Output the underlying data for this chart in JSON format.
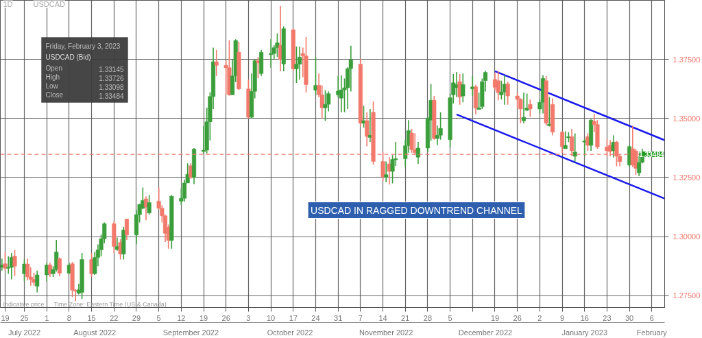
{
  "chart_data": {
    "type": "candlestick",
    "title": "USDCAD",
    "subtitle": "1D",
    "x": [
      "2022-07-18",
      "2022-07-19",
      "2022-07-20",
      "2022-07-21",
      "2022-07-22",
      "2022-07-25",
      "2022-07-26",
      "2022-07-27",
      "2022-07-28",
      "2022-07-29",
      "2022-08-01",
      "2022-08-02",
      "2022-08-03",
      "2022-08-04",
      "2022-08-05",
      "2022-08-08",
      "2022-08-09",
      "2022-08-10",
      "2022-08-11",
      "2022-08-12",
      "2022-08-15",
      "2022-08-16",
      "2022-08-17",
      "2022-08-18",
      "2022-08-19",
      "2022-08-22",
      "2022-08-23",
      "2022-08-24",
      "2022-08-25",
      "2022-08-26",
      "2022-08-29",
      "2022-08-30",
      "2022-08-31",
      "2022-09-01",
      "2022-09-02",
      "2022-09-05",
      "2022-09-06",
      "2022-09-07",
      "2022-09-08",
      "2022-09-09",
      "2022-09-12",
      "2022-09-13",
      "2022-09-14",
      "2022-09-15",
      "2022-09-16",
      "2022-09-19",
      "2022-09-20",
      "2022-09-21",
      "2022-09-22",
      "2022-09-23",
      "2022-09-26",
      "2022-09-27",
      "2022-09-28",
      "2022-09-29",
      "2022-09-30",
      "2022-10-03",
      "2022-10-04",
      "2022-10-05",
      "2022-10-06",
      "2022-10-07",
      "2022-10-10",
      "2022-10-11",
      "2022-10-12",
      "2022-10-13",
      "2022-10-14",
      "2022-10-17",
      "2022-10-18",
      "2022-10-19",
      "2022-10-20",
      "2022-10-21",
      "2022-10-24",
      "2022-10-25",
      "2022-10-26",
      "2022-10-27",
      "2022-10-28",
      "2022-10-31",
      "2022-11-01",
      "2022-11-02",
      "2022-11-03",
      "2022-11-04",
      "2022-11-07",
      "2022-11-08",
      "2022-11-09",
      "2022-11-10",
      "2022-11-11",
      "2022-11-14",
      "2022-11-15",
      "2022-11-16",
      "2022-11-17",
      "2022-11-18",
      "2022-11-21",
      "2022-11-22",
      "2022-11-23",
      "2022-11-24",
      "2022-11-25",
      "2022-11-28",
      "2022-11-29",
      "2022-11-30",
      "2022-12-01",
      "2022-12-02",
      "2022-12-05",
      "2022-12-06",
      "2022-12-07",
      "2022-12-08",
      "2022-12-09",
      "2022-12-12",
      "2022-12-13",
      "2022-12-14",
      "2022-12-15",
      "2022-12-16",
      "2022-12-19",
      "2022-12-20",
      "2022-12-21",
      "2022-12-22",
      "2022-12-23",
      "2022-12-26",
      "2022-12-27",
      "2022-12-28",
      "2022-12-29",
      "2022-12-30",
      "2023-01-02",
      "2023-01-03",
      "2023-01-04",
      "2023-01-05",
      "2023-01-06",
      "2023-01-09",
      "2023-01-10",
      "2023-01-11",
      "2023-01-12",
      "2023-01-13",
      "2023-01-16",
      "2023-01-17",
      "2023-01-18",
      "2023-01-19",
      "2023-01-20",
      "2023-01-23",
      "2023-01-24",
      "2023-01-25",
      "2023-01-26",
      "2023-01-27",
      "2023-01-30",
      "2023-01-31",
      "2023-02-01",
      "2023-02-02",
      "2023-02-03"
    ],
    "ohlc": [
      [
        1.287,
        1.2907,
        1.2856,
        1.288
      ],
      [
        1.2885,
        1.2935,
        1.2856,
        1.2866
      ],
      [
        1.2866,
        1.2917,
        1.2843,
        1.287
      ],
      [
        1.287,
        1.2931,
        1.2819,
        1.2912
      ],
      [
        1.2917,
        1.2944,
        1.2833,
        1.2875
      ],
      [
        1.2843,
        1.2903,
        1.281,
        1.2884
      ],
      [
        1.2884,
        1.2907,
        1.2815,
        1.2829
      ],
      [
        1.2829,
        1.287,
        1.2792,
        1.2819
      ],
      [
        1.2819,
        1.2847,
        1.2792,
        1.2806
      ],
      [
        1.279,
        1.2856,
        1.2764,
        1.2838
      ],
      [
        1.2838,
        1.2889,
        1.281,
        1.288
      ],
      [
        1.288,
        1.2889,
        1.2829,
        1.2843
      ],
      [
        1.2843,
        1.2875,
        1.2829,
        1.2861
      ],
      [
        1.2861,
        1.2986,
        1.2852,
        1.2935
      ],
      [
        1.2907,
        1.2912,
        1.2833,
        1.2845
      ],
      [
        1.2845,
        1.2889,
        1.2843,
        1.288
      ],
      [
        1.2885,
        1.2893,
        1.2745,
        1.2773
      ],
      [
        1.2773,
        1.2778,
        1.2727,
        1.2769
      ],
      [
        1.276,
        1.2801,
        1.2755,
        1.2775
      ],
      [
        1.2764,
        1.2931,
        1.2736,
        1.2903
      ],
      [
        1.2903,
        1.2931,
        1.2829,
        1.2843
      ],
      [
        1.2843,
        1.2935,
        1.2838,
        1.2912
      ],
      [
        1.2912,
        1.2967,
        1.2875,
        1.2944
      ],
      [
        1.2944,
        1.3009,
        1.2917,
        1.2991
      ],
      [
        1.2991,
        1.306,
        1.2972,
        1.3055
      ],
      [
        1.3055,
        1.3065,
        1.2931,
        1.2958
      ],
      [
        1.2945,
        1.2996,
        1.294,
        1.2958
      ],
      [
        1.2975,
        1.299,
        1.2903,
        1.2926
      ],
      [
        1.2926,
        1.3042,
        1.2903,
        1.3028
      ],
      [
        1.3074,
        1.3074,
        1.2986,
        1.3007
      ],
      [
        1.3007,
        1.3111,
        1.2968,
        1.3093
      ],
      [
        1.3093,
        1.3139,
        1.306,
        1.3136
      ],
      [
        1.312,
        1.3208,
        1.3116,
        1.3153
      ],
      [
        1.316,
        1.3171,
        1.3069,
        1.3125
      ],
      [
        1.31,
        1.3176,
        1.3093,
        1.3144
      ],
      [
        1.315,
        1.3208,
        1.3116,
        1.312
      ],
      [
        1.312,
        1.3134,
        1.306,
        1.3088
      ],
      [
        1.3088,
        1.3093,
        1.2977,
        1.3014
      ],
      [
        1.304,
        1.3051,
        1.2949,
        1.2984
      ],
      [
        1.2984,
        1.3176,
        1.2949,
        1.3171
      ],
      [
        1.315,
        1.3204,
        1.3134,
        1.3162
      ],
      [
        1.3162,
        1.3241,
        1.3148,
        1.3227
      ],
      [
        1.3227,
        1.331,
        1.3227,
        1.3264
      ],
      [
        1.33,
        1.331,
        1.3245,
        1.325
      ],
      [
        1.325,
        1.3375,
        1.3222,
        1.337
      ],
      [
        1.336,
        1.3468,
        1.3352,
        1.3366
      ],
      [
        1.3366,
        1.3546,
        1.3352,
        1.3486
      ],
      [
        1.3486,
        1.3611,
        1.3407,
        1.3593
      ],
      [
        1.3593,
        1.38,
        1.354,
        1.374
      ],
      [
        1.374,
        1.379,
        1.368,
        1.3725
      ],
      [
        1.3725,
        1.3745,
        1.36,
        1.3715
      ],
      [
        1.3715,
        1.383,
        1.3597,
        1.36
      ],
      [
        1.36,
        1.375,
        1.36,
        1.368
      ],
      [
        1.368,
        1.3835,
        1.3655,
        1.383
      ],
      [
        1.378,
        1.3825,
        1.362,
        1.3625
      ],
      [
        1.3625,
        1.3665,
        1.35,
        1.3505
      ],
      [
        1.3505,
        1.369,
        1.35,
        1.3615
      ],
      [
        1.3615,
        1.375,
        1.3585,
        1.3745
      ],
      [
        1.3745,
        1.376,
        1.367,
        1.3735
      ],
      [
        1.369,
        1.379,
        1.368,
        1.378
      ],
      [
        1.377,
        1.3835,
        1.3715,
        1.3775
      ],
      [
        1.3775,
        1.381,
        1.375,
        1.38
      ],
      [
        1.38,
        1.386,
        1.376,
        1.382
      ],
      [
        1.381,
        1.3975,
        1.37,
        1.375
      ],
      [
        1.3731,
        1.389,
        1.37,
        1.388
      ],
      [
        1.3875,
        1.388,
        1.37,
        1.371
      ],
      [
        1.371,
        1.3805,
        1.365,
        1.373
      ],
      [
        1.373,
        1.3805,
        1.3665,
        1.376
      ],
      [
        1.3775,
        1.38,
        1.3675,
        1.3765
      ],
      [
        1.3765,
        1.3845,
        1.361,
        1.3643
      ],
      [
        1.362,
        1.376,
        1.36,
        1.364
      ],
      [
        1.364,
        1.369,
        1.359,
        1.36
      ],
      [
        1.36,
        1.364,
        1.35,
        1.3545
      ],
      [
        1.3545,
        1.362,
        1.349,
        1.356
      ],
      [
        1.356,
        1.3615,
        1.353,
        1.3605
      ],
      [
        1.36,
        1.368,
        1.359,
        1.3616
      ],
      [
        1.3586,
        1.3683,
        1.3526,
        1.3621
      ],
      [
        1.3621,
        1.3669,
        1.3526,
        1.363
      ],
      [
        1.363,
        1.3716,
        1.354,
        1.3711
      ],
      [
        1.3711,
        1.3808,
        1.3614,
        1.3748
      ],
      [
        1.373,
        1.3753,
        1.3466,
        1.348
      ],
      [
        1.348,
        1.3554,
        1.3461,
        1.3491
      ],
      [
        1.3491,
        1.3526,
        1.3382,
        1.3424
      ],
      [
        1.342,
        1.354,
        1.3401,
        1.3429
      ],
      [
        1.3526,
        1.3572,
        1.3304,
        1.3318
      ],
      [
        1.3318,
        1.3359,
        1.3234,
        1.3253
      ],
      [
        1.3253,
        1.3318,
        1.323,
        1.3262
      ],
      [
        1.3308,
        1.3336,
        1.322,
        1.3276
      ],
      [
        1.3276,
        1.3345,
        1.3225,
        1.3327
      ],
      [
        1.3325,
        1.3401,
        1.3299,
        1.333
      ],
      [
        1.333,
        1.341,
        1.3294,
        1.3385
      ],
      [
        1.3385,
        1.3493,
        1.3355,
        1.3449
      ],
      [
        1.3438,
        1.3456,
        1.3355,
        1.3368
      ],
      [
        1.3368,
        1.3438,
        1.3345,
        1.3355
      ],
      [
        1.3336,
        1.3401,
        1.3308,
        1.3375
      ],
      [
        1.3375,
        1.3507,
        1.3359,
        1.3498
      ],
      [
        1.3493,
        1.3646,
        1.3406,
        1.3577
      ],
      [
        1.3577,
        1.3595,
        1.341,
        1.3415
      ],
      [
        1.3415,
        1.347,
        1.3387,
        1.3429
      ],
      [
        1.3429,
        1.3526,
        1.341,
        1.3458
      ],
      [
        1.341,
        1.3605,
        1.3378,
        1.3588
      ],
      [
        1.36,
        1.3688,
        1.3563,
        1.3651
      ],
      [
        1.363,
        1.3697,
        1.3591,
        1.3644
      ],
      [
        1.3656,
        1.3688,
        1.3558,
        1.3591
      ],
      [
        1.3595,
        1.369,
        1.3568,
        1.3644
      ],
      [
        1.3625,
        1.3679,
        1.3595,
        1.3634
      ],
      [
        1.3634,
        1.3642,
        1.3517,
        1.3544
      ],
      [
        1.3538,
        1.3609,
        1.3538,
        1.3545
      ],
      [
        1.355,
        1.3669,
        1.354,
        1.3656
      ],
      [
        1.366,
        1.3702,
        1.3614,
        1.3695
      ],
      [
        1.3665,
        1.3693,
        1.3619,
        1.3632
      ],
      [
        1.366,
        1.3702,
        1.3577,
        1.3609
      ],
      [
        1.36,
        1.366,
        1.3581,
        1.3612
      ],
      [
        1.3612,
        1.3683,
        1.3558,
        1.3646
      ],
      [
        1.3646,
        1.3656,
        1.3558,
        1.3595
      ],
      [
        1.3595,
        1.3609,
        1.3544,
        1.3581
      ],
      [
        1.3581,
        1.3586,
        1.348,
        1.354
      ],
      [
        1.349,
        1.3609,
        1.348,
        1.3505
      ],
      [
        1.3535,
        1.3605,
        1.3531,
        1.3544
      ],
      [
        1.356,
        1.3581,
        1.3507,
        1.354
      ],
      [
        1.354,
        1.3581,
        1.3521,
        1.3568
      ],
      [
        1.3568,
        1.3683,
        1.3521,
        1.3669
      ],
      [
        1.366,
        1.3679,
        1.347,
        1.348
      ],
      [
        1.347,
        1.359,
        1.3466,
        1.3476
      ],
      [
        1.356,
        1.3585,
        1.3428,
        1.3442
      ],
      [
        1.3442,
        1.3446,
        1.3354,
        1.3381
      ],
      [
        1.3372,
        1.3446,
        1.3372,
        1.3386
      ],
      [
        1.3418,
        1.3442,
        1.34,
        1.3423
      ],
      [
        1.3423,
        1.3456,
        1.334,
        1.3363
      ],
      [
        1.334,
        1.3437,
        1.3317,
        1.3358
      ],
      [
        1.34,
        1.3414,
        1.334,
        1.3405
      ],
      [
        1.3423,
        1.3437,
        1.3363,
        1.3386
      ],
      [
        1.3386,
        1.3497,
        1.3363,
        1.3493
      ],
      [
        1.3488,
        1.352,
        1.3442,
        1.3474
      ],
      [
        1.3474,
        1.3493,
        1.3372,
        1.338
      ],
      [
        1.338,
        1.3414,
        1.334,
        1.3363
      ],
      [
        1.3386,
        1.3409,
        1.334,
        1.336
      ],
      [
        1.3363,
        1.3428,
        1.3335,
        1.34
      ],
      [
        1.34,
        1.3405,
        1.3298,
        1.334
      ],
      [
        1.334,
        1.3349,
        1.3298,
        1.3317
      ],
      [
        1.3303,
        1.3386,
        1.3294,
        1.3381
      ],
      [
        1.3372,
        1.347,
        1.3294,
        1.3303
      ],
      [
        1.3363,
        1.3372,
        1.3261,
        1.3289
      ],
      [
        1.327,
        1.334,
        1.3256,
        1.3314
      ],
      [
        1.33145,
        1.33726,
        1.33098,
        1.33484
      ]
    ],
    "colors": [
      "#3a9e3a",
      "#f2796b",
      "#3a9e3a",
      "#3a9e3a",
      "#f2796b",
      "#3a9e3a",
      "#f2796b",
      "#f2796b",
      "#f2796b",
      "#3a9e3a",
      "#3a9e3a",
      "#f2796b",
      "#3a9e3a",
      "#3a9e3a",
      "#f2796b",
      "#3a9e3a",
      "#f2796b",
      "#f2796b",
      "#3a9e3a",
      "#3a9e3a",
      "#f2796b",
      "#3a9e3a",
      "#3a9e3a",
      "#3a9e3a",
      "#3a9e3a",
      "#f2796b",
      "#3a9e3a",
      "#f2796b",
      "#3a9e3a",
      "#f2796b",
      "#3a9e3a",
      "#3a9e3a",
      "#3a9e3a",
      "#f2796b",
      "#3a9e3a",
      "#f2796b",
      "#f2796b",
      "#f2796b",
      "#f2796b",
      "#3a9e3a",
      "#3a9e3a",
      "#3a9e3a",
      "#3a9e3a",
      "#f2796b",
      "#3a9e3a",
      "#3a9e3a",
      "#3a9e3a",
      "#3a9e3a",
      "#3a9e3a",
      "#f2796b",
      "#f2796b",
      "#f2796b",
      "#3a9e3a",
      "#3a9e3a",
      "#f2796b",
      "#f2796b",
      "#3a9e3a",
      "#3a9e3a",
      "#f2796b",
      "#3a9e3a",
      "#3a9e3a",
      "#3a9e3a",
      "#3a9e3a",
      "#f2796b",
      "#3a9e3a",
      "#f2796b",
      "#3a9e3a",
      "#3a9e3a",
      "#f2796b",
      "#f2796b",
      "#3a9e3a",
      "#f2796b",
      "#f2796b",
      "#3a9e3a",
      "#3a9e3a",
      "#3a9e3a",
      "#3a9e3a",
      "#3a9e3a",
      "#3a9e3a",
      "#3a9e3a",
      "#f2796b",
      "#3a9e3a",
      "#f2796b",
      "#3a9e3a",
      "#f2796b",
      "#f2796b",
      "#3a9e3a",
      "#f2796b",
      "#3a9e3a",
      "#3a9e3a",
      "#3a9e3a",
      "#3a9e3a",
      "#f2796b",
      "#f2796b",
      "#3a9e3a",
      "#3a9e3a",
      "#3a9e3a",
      "#f2796b",
      "#3a9e3a",
      "#3a9e3a",
      "#3a9e3a",
      "#3a9e3a",
      "#3a9e3a",
      "#f2796b",
      "#3a9e3a",
      "#3a9e3a",
      "#f2796b",
      "#3a9e3a",
      "#3a9e3a",
      "#3a9e3a",
      "#f2796b",
      "#f2796b",
      "#3a9e3a",
      "#3a9e3a",
      "#f2796b",
      "#f2796b",
      "#f2796b",
      "#3a9e3a",
      "#3a9e3a",
      "#f2796b",
      "#3a9e3a",
      "#3a9e3a",
      "#f2796b",
      "#3a9e3a",
      "#f2796b",
      "#f2796b",
      "#3a9e3a",
      "#3a9e3a",
      "#f2796b",
      "#3a9e3a",
      "#3a9e3a",
      "#f2796b",
      "#3a9e3a",
      "#f2796b",
      "#f2796b",
      "#f2796b",
      "#f2796b",
      "#3a9e3a",
      "#f2796b",
      "#f2796b",
      "#3a9e3a",
      "#f2796b",
      "#f2796b",
      "#3a9e3a",
      "#3a9e3a"
    ],
    "series": [
      {
        "type": "line",
        "color": "#1a1aee",
        "x": [
          "2022-12-19",
          "2023-02-10"
        ],
        "values": [
          1.37,
          1.3408
        ]
      },
      {
        "type": "line",
        "color": "#1a1aee",
        "x": [
          "2022-12-07",
          "2023-02-10"
        ],
        "values": [
          1.3517,
          1.3161
        ]
      }
    ],
    "xlim": [
      "2022-07-17T12:00",
      "2023-02-10"
    ],
    "xticks": [
      {
        "value": "2022-07-19",
        "label": "19"
      },
      {
        "value": "2022-07-25",
        "label": "25"
      },
      {
        "value": "2022-08-01",
        "label": "1"
      },
      {
        "value": "2022-08-08",
        "label": "8"
      },
      {
        "value": "2022-08-15",
        "label": "15"
      },
      {
        "value": "2022-08-22",
        "label": "22"
      },
      {
        "value": "2022-08-29",
        "label": "29"
      },
      {
        "value": "2022-09-05",
        "label": "5"
      },
      {
        "value": "2022-09-12",
        "label": "12"
      },
      {
        "value": "2022-09-19",
        "label": "19"
      },
      {
        "value": "2022-09-26",
        "label": "26"
      },
      {
        "value": "2022-10-03",
        "label": "3"
      },
      {
        "value": "2022-10-10",
        "label": "10"
      },
      {
        "value": "2022-10-17",
        "label": "17"
      },
      {
        "value": "2022-10-24",
        "label": "24"
      },
      {
        "value": "2022-10-31",
        "label": "31"
      },
      {
        "value": "2022-11-07",
        "label": "7"
      },
      {
        "value": "2022-11-14",
        "label": "14"
      },
      {
        "value": "2022-11-21",
        "label": "21"
      },
      {
        "value": "2022-11-28",
        "label": "28"
      },
      {
        "value": "2022-12-05",
        "label": "5"
      },
      {
        "value": "2022-12-12",
        "label": null
      },
      {
        "value": "2022-12-19",
        "label": "19"
      },
      {
        "value": "2022-12-26",
        "label": "26"
      },
      {
        "value": "2023-01-02",
        "label": "2"
      },
      {
        "value": "2023-01-09",
        "label": "9"
      },
      {
        "value": "2023-01-16",
        "label": "16"
      },
      {
        "value": "2023-01-23",
        "label": "23"
      },
      {
        "value": "2023-01-30",
        "label": "30"
      },
      {
        "value": "2023-02-06",
        "label": "6"
      }
    ],
    "x2lim": [
      "2022-07-17T12:00",
      "2023-02-10"
    ],
    "x2ticks": [
      {
        "value": "2022-07-25",
        "label": "July 2022"
      },
      {
        "value": "2022-08-16",
        "label": "August 2022"
      },
      {
        "value": "2022-09-15",
        "label": "September 2022"
      },
      {
        "value": "2022-10-16",
        "label": "October 2022"
      },
      {
        "value": "2022-11-15",
        "label": "November 2022"
      },
      {
        "value": "2022-12-16",
        "label": "December 2022"
      },
      {
        "value": "2023-01-16",
        "label": "January 2023"
      },
      {
        "value": "2023-02-06",
        "label": "February"
      }
    ],
    "ylim": [
      1.27,
      1.4
    ],
    "yticks": [
      {
        "value": 1.275,
        "label": "1.27500"
      },
      {
        "value": 1.3,
        "label": "1.30000"
      },
      {
        "value": 1.325,
        "label": "1.32500"
      },
      {
        "value": 1.35,
        "label": "1.35000"
      },
      {
        "value": 1.375,
        "label": "1.37500"
      }
    ],
    "ref_lines": [
      {
        "axis": "y",
        "value": 1.33484,
        "label": "1.33484",
        "color": "#f2796b",
        "line_style": "dashed"
      }
    ],
    "grid": true,
    "annotations": [
      "Friday, February 3, 2023",
      "USDCAD (Bid)",
      "Open",
      "1.33145",
      "High",
      "1.33726",
      "Low",
      "1.33098",
      "Close",
      "1.33484",
      "Indicative price",
      "Time Zone: Eastern Time (US & Canada)",
      "USDCAD IN RAGGED DOWNTREND CHANNEL"
    ]
  }
}
